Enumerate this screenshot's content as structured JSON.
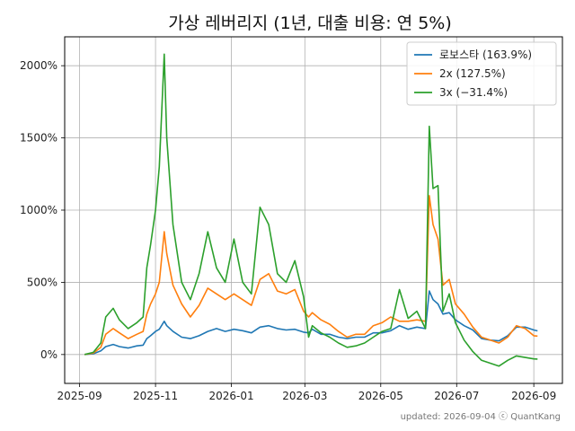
{
  "footer": "updated: 2026-09-04 ⓒ QuantKang",
  "chart_data": {
    "type": "line",
    "title": "가상 레버리지 (1년, 대출 비용: 연 5%)",
    "xlabel": "",
    "ylabel": "",
    "x_range": [
      "2025-08-20",
      "2026-09-24"
    ],
    "ylim": [
      -200,
      2200
    ],
    "grid": true,
    "legend_position": "top-right",
    "x_ticks": [
      {
        "date": "2025-09-01",
        "label": "2025-09"
      },
      {
        "date": "2025-11-01",
        "label": "2025-11"
      },
      {
        "date": "2026-01-01",
        "label": "2026-01"
      },
      {
        "date": "2026-03-01",
        "label": "2026-03"
      },
      {
        "date": "2026-05-01",
        "label": "2026-05"
      },
      {
        "date": "2026-07-01",
        "label": "2026-07"
      },
      {
        "date": "2026-09-01",
        "label": "2026-09"
      }
    ],
    "y_ticks": [
      {
        "value": 0,
        "label": "0%"
      },
      {
        "value": 500,
        "label": "500%"
      },
      {
        "value": 1000,
        "label": "1000%"
      },
      {
        "value": 1500,
        "label": "1500%"
      },
      {
        "value": 2000,
        "label": "2000%"
      }
    ],
    "series": [
      {
        "name": "로보스타 (163.9%)",
        "color": "#1f77b4",
        "points": [
          [
            "2025-09-05",
            0
          ],
          [
            "2025-09-12",
            5
          ],
          [
            "2025-09-18",
            25
          ],
          [
            "2025-09-22",
            55
          ],
          [
            "2025-09-28",
            70
          ],
          [
            "2025-10-03",
            55
          ],
          [
            "2025-10-10",
            45
          ],
          [
            "2025-10-17",
            60
          ],
          [
            "2025-10-22",
            65
          ],
          [
            "2025-10-25",
            110
          ],
          [
            "2025-10-28",
            130
          ],
          [
            "2025-11-01",
            160
          ],
          [
            "2025-11-04",
            175
          ],
          [
            "2025-11-08",
            230
          ],
          [
            "2025-11-10",
            200
          ],
          [
            "2025-11-15",
            160
          ],
          [
            "2025-11-22",
            120
          ],
          [
            "2025-11-29",
            110
          ],
          [
            "2025-12-06",
            130
          ],
          [
            "2025-12-13",
            160
          ],
          [
            "2025-12-20",
            180
          ],
          [
            "2025-12-27",
            160
          ],
          [
            "2026-01-03",
            175
          ],
          [
            "2026-01-10",
            165
          ],
          [
            "2026-01-17",
            150
          ],
          [
            "2026-01-24",
            190
          ],
          [
            "2026-01-31",
            200
          ],
          [
            "2026-02-07",
            180
          ],
          [
            "2026-02-14",
            170
          ],
          [
            "2026-02-21",
            175
          ],
          [
            "2026-02-28",
            155
          ],
          [
            "2026-03-04",
            150
          ],
          [
            "2026-03-07",
            175
          ],
          [
            "2026-03-14",
            140
          ],
          [
            "2026-03-21",
            140
          ],
          [
            "2026-03-28",
            120
          ],
          [
            "2026-04-04",
            110
          ],
          [
            "2026-04-11",
            120
          ],
          [
            "2026-04-18",
            120
          ],
          [
            "2026-04-25",
            150
          ],
          [
            "2026-05-02",
            150
          ],
          [
            "2026-05-09",
            165
          ],
          [
            "2026-05-16",
            200
          ],
          [
            "2026-05-23",
            175
          ],
          [
            "2026-05-30",
            190
          ],
          [
            "2026-06-06",
            180
          ],
          [
            "2026-06-09",
            440
          ],
          [
            "2026-06-12",
            380
          ],
          [
            "2026-06-16",
            350
          ],
          [
            "2026-06-20",
            280
          ],
          [
            "2026-06-25",
            290
          ],
          [
            "2026-06-30",
            240
          ],
          [
            "2026-07-07",
            200
          ],
          [
            "2026-07-14",
            170
          ],
          [
            "2026-07-21",
            110
          ],
          [
            "2026-07-28",
            100
          ],
          [
            "2026-08-04",
            95
          ],
          [
            "2026-08-11",
            130
          ],
          [
            "2026-08-18",
            190
          ],
          [
            "2026-08-25",
            190
          ],
          [
            "2026-09-01",
            170
          ],
          [
            "2026-09-04",
            163.9
          ]
        ]
      },
      {
        "name": "2x (127.5%)",
        "color": "#ff7f0e",
        "points": [
          [
            "2025-09-05",
            0
          ],
          [
            "2025-09-12",
            10
          ],
          [
            "2025-09-18",
            50
          ],
          [
            "2025-09-22",
            140
          ],
          [
            "2025-09-28",
            180
          ],
          [
            "2025-10-03",
            150
          ],
          [
            "2025-10-10",
            110
          ],
          [
            "2025-10-17",
            140
          ],
          [
            "2025-10-22",
            160
          ],
          [
            "2025-10-25",
            280
          ],
          [
            "2025-10-28",
            350
          ],
          [
            "2025-11-01",
            420
          ],
          [
            "2025-11-04",
            500
          ],
          [
            "2025-11-08",
            850
          ],
          [
            "2025-11-10",
            700
          ],
          [
            "2025-11-15",
            480
          ],
          [
            "2025-11-22",
            350
          ],
          [
            "2025-11-29",
            260
          ],
          [
            "2025-12-06",
            340
          ],
          [
            "2025-12-13",
            460
          ],
          [
            "2025-12-20",
            420
          ],
          [
            "2025-12-27",
            380
          ],
          [
            "2026-01-03",
            420
          ],
          [
            "2026-01-10",
            380
          ],
          [
            "2026-01-17",
            340
          ],
          [
            "2026-01-24",
            520
          ],
          [
            "2026-01-31",
            560
          ],
          [
            "2026-02-07",
            440
          ],
          [
            "2026-02-14",
            420
          ],
          [
            "2026-02-21",
            450
          ],
          [
            "2026-02-28",
            300
          ],
          [
            "2026-03-04",
            260
          ],
          [
            "2026-03-07",
            290
          ],
          [
            "2026-03-14",
            240
          ],
          [
            "2026-03-21",
            210
          ],
          [
            "2026-03-28",
            160
          ],
          [
            "2026-04-04",
            120
          ],
          [
            "2026-04-11",
            140
          ],
          [
            "2026-04-18",
            140
          ],
          [
            "2026-04-25",
            200
          ],
          [
            "2026-05-02",
            220
          ],
          [
            "2026-05-09",
            260
          ],
          [
            "2026-05-16",
            230
          ],
          [
            "2026-05-23",
            230
          ],
          [
            "2026-05-30",
            240
          ],
          [
            "2026-06-06",
            230
          ],
          [
            "2026-06-09",
            1100
          ],
          [
            "2026-06-12",
            900
          ],
          [
            "2026-06-16",
            800
          ],
          [
            "2026-06-20",
            480
          ],
          [
            "2026-06-25",
            520
          ],
          [
            "2026-06-30",
            350
          ],
          [
            "2026-07-07",
            280
          ],
          [
            "2026-07-14",
            190
          ],
          [
            "2026-07-21",
            120
          ],
          [
            "2026-07-28",
            100
          ],
          [
            "2026-08-04",
            80
          ],
          [
            "2026-08-11",
            120
          ],
          [
            "2026-08-18",
            200
          ],
          [
            "2026-08-25",
            180
          ],
          [
            "2026-09-01",
            130
          ],
          [
            "2026-09-04",
            127.5
          ]
        ]
      },
      {
        "name": "3x (−31.4%)",
        "color": "#2ca02c",
        "points": [
          [
            "2025-09-05",
            0
          ],
          [
            "2025-09-12",
            15
          ],
          [
            "2025-09-18",
            80
          ],
          [
            "2025-09-22",
            260
          ],
          [
            "2025-09-28",
            320
          ],
          [
            "2025-10-03",
            240
          ],
          [
            "2025-10-10",
            180
          ],
          [
            "2025-10-17",
            220
          ],
          [
            "2025-10-22",
            260
          ],
          [
            "2025-10-25",
            600
          ],
          [
            "2025-10-28",
            760
          ],
          [
            "2025-11-01",
            1000
          ],
          [
            "2025-11-04",
            1300
          ],
          [
            "2025-11-08",
            2080
          ],
          [
            "2025-11-10",
            1500
          ],
          [
            "2025-11-15",
            900
          ],
          [
            "2025-11-22",
            500
          ],
          [
            "2025-11-29",
            380
          ],
          [
            "2025-12-06",
            560
          ],
          [
            "2025-12-13",
            850
          ],
          [
            "2025-12-20",
            600
          ],
          [
            "2025-12-27",
            500
          ],
          [
            "2026-01-03",
            800
          ],
          [
            "2026-01-10",
            500
          ],
          [
            "2026-01-17",
            420
          ],
          [
            "2026-01-24",
            1020
          ],
          [
            "2026-01-31",
            900
          ],
          [
            "2026-02-07",
            560
          ],
          [
            "2026-02-14",
            500
          ],
          [
            "2026-02-21",
            650
          ],
          [
            "2026-02-28",
            400
          ],
          [
            "2026-03-04",
            120
          ],
          [
            "2026-03-07",
            200
          ],
          [
            "2026-03-14",
            150
          ],
          [
            "2026-03-21",
            120
          ],
          [
            "2026-03-28",
            80
          ],
          [
            "2026-04-04",
            50
          ],
          [
            "2026-04-11",
            60
          ],
          [
            "2026-04-18",
            80
          ],
          [
            "2026-04-25",
            120
          ],
          [
            "2026-05-02",
            160
          ],
          [
            "2026-05-09",
            180
          ],
          [
            "2026-05-16",
            450
          ],
          [
            "2026-05-23",
            250
          ],
          [
            "2026-05-30",
            300
          ],
          [
            "2026-06-06",
            180
          ],
          [
            "2026-06-09",
            1580
          ],
          [
            "2026-06-12",
            1150
          ],
          [
            "2026-06-16",
            1170
          ],
          [
            "2026-06-20",
            300
          ],
          [
            "2026-06-25",
            420
          ],
          [
            "2026-06-30",
            220
          ],
          [
            "2026-07-07",
            100
          ],
          [
            "2026-07-14",
            20
          ],
          [
            "2026-07-21",
            -40
          ],
          [
            "2026-07-28",
            -60
          ],
          [
            "2026-08-04",
            -80
          ],
          [
            "2026-08-11",
            -40
          ],
          [
            "2026-08-18",
            -10
          ],
          [
            "2026-08-25",
            -20
          ],
          [
            "2026-09-01",
            -30
          ],
          [
            "2026-09-04",
            -31.4
          ]
        ]
      }
    ]
  }
}
